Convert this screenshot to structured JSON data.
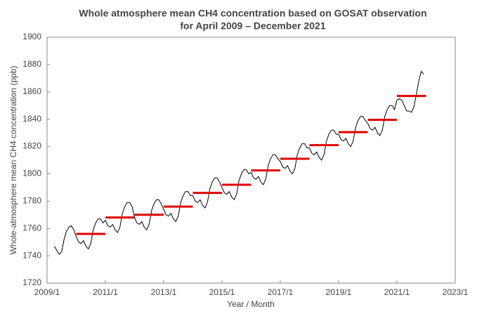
{
  "chart_data": {
    "type": "line",
    "title": [
      "Whole atmosphere mean CH4 concentration based on GOSAT observation",
      "for April 2009 – December 2021"
    ],
    "x_label": "Year / Month",
    "y_label": "Whole-atmosphere mean CH4 concentration (ppb)",
    "x": [
      "2009/4",
      "2009/5",
      "2009/6",
      "2009/7",
      "2009/8",
      "2009/9",
      "2009/10",
      "2009/11",
      "2009/12",
      "2010/1",
      "2010/2",
      "2010/3",
      "2010/4",
      "2010/5",
      "2010/6",
      "2010/7",
      "2010/8",
      "2010/9",
      "2010/10",
      "2010/11",
      "2010/12",
      "2011/1",
      "2011/2",
      "2011/3",
      "2011/4",
      "2011/5",
      "2011/6",
      "2011/7",
      "2011/8",
      "2011/9",
      "2011/10",
      "2011/11",
      "2011/12",
      "2012/1",
      "2012/2",
      "2012/3",
      "2012/4",
      "2012/5",
      "2012/6",
      "2012/7",
      "2012/8",
      "2012/9",
      "2012/10",
      "2012/11",
      "2012/12",
      "2013/1",
      "2013/2",
      "2013/3",
      "2013/4",
      "2013/5",
      "2013/6",
      "2013/7",
      "2013/8",
      "2013/9",
      "2013/10",
      "2013/11",
      "2013/12",
      "2014/1",
      "2014/2",
      "2014/3",
      "2014/4",
      "2014/5",
      "2014/6",
      "2014/7",
      "2014/8",
      "2014/9",
      "2014/10",
      "2014/11",
      "2014/12",
      "2015/1",
      "2015/2",
      "2015/3",
      "2015/4",
      "2015/5",
      "2015/6",
      "2015/7",
      "2015/8",
      "2015/9",
      "2015/10",
      "2015/11",
      "2015/12",
      "2016/1",
      "2016/2",
      "2016/3",
      "2016/4",
      "2016/5",
      "2016/6",
      "2016/7",
      "2016/8",
      "2016/9",
      "2016/10",
      "2016/11",
      "2016/12",
      "2017/1",
      "2017/2",
      "2017/3",
      "2017/4",
      "2017/5",
      "2017/6",
      "2017/7",
      "2017/8",
      "2017/9",
      "2017/10",
      "2017/11",
      "2017/12",
      "2018/1",
      "2018/2",
      "2018/3",
      "2018/4",
      "2018/5",
      "2018/6",
      "2018/7",
      "2018/8",
      "2018/9",
      "2018/10",
      "2018/11",
      "2018/12",
      "2019/1",
      "2019/2",
      "2019/3",
      "2019/4",
      "2019/5",
      "2019/6",
      "2019/7",
      "2019/8",
      "2019/9",
      "2019/10",
      "2019/11",
      "2019/12",
      "2020/1",
      "2020/2",
      "2020/3",
      "2020/4",
      "2020/5",
      "2020/6",
      "2020/7",
      "2020/8",
      "2020/9",
      "2020/10",
      "2020/11",
      "2020/12",
      "2021/1",
      "2021/2",
      "2021/3",
      "2021/4",
      "2021/5",
      "2021/6",
      "2021/7",
      "2021/8",
      "2021/9",
      "2021/10",
      "2021/11",
      "2021/12"
    ],
    "series": [
      {
        "color": "#000000",
        "values": [
          1747,
          1744,
          1741,
          1743,
          1752,
          1758,
          1761,
          1762,
          1759,
          1754,
          1750,
          1749,
          1751,
          1747,
          1745,
          1749,
          1759,
          1764,
          1767,
          1767,
          1764,
          1766,
          1762,
          1761,
          1763,
          1759,
          1757,
          1761,
          1771,
          1776,
          1779,
          1779,
          1776,
          1768,
          1764,
          1763,
          1765,
          1761,
          1759,
          1763,
          1773,
          1778,
          1781,
          1781,
          1778,
          1774,
          1770,
          1769,
          1771,
          1767,
          1765,
          1769,
          1779,
          1784,
          1787,
          1787,
          1784,
          1784,
          1780,
          1779,
          1781,
          1777,
          1775,
          1779,
          1789,
          1794,
          1797,
          1797,
          1794,
          1790,
          1786,
          1785,
          1787,
          1783,
          1781,
          1785,
          1795,
          1800,
          1803,
          1803,
          1800,
          1801,
          1797,
          1796,
          1798,
          1794,
          1792,
          1796,
          1806,
          1811,
          1814,
          1814,
          1811,
          1809,
          1805,
          1804,
          1806,
          1802,
          1800,
          1804,
          1814,
          1819,
          1822,
          1822,
          1819,
          1819,
          1815,
          1814,
          1816,
          1812,
          1810,
          1814,
          1824,
          1829,
          1832,
          1832,
          1829,
          1829,
          1825,
          1824,
          1826,
          1822,
          1820,
          1824,
          1834,
          1839,
          1842,
          1842,
          1839,
          1837,
          1833,
          1832,
          1834,
          1830,
          1828,
          1832,
          1842,
          1847,
          1850,
          1850,
          1847,
          1854,
          1855,
          1854,
          1850,
          1846,
          1846,
          1845,
          1849,
          1858,
          1868,
          1875,
          1873
        ]
      }
    ],
    "annual_means": {
      "color": "#e00000",
      "years": [
        2010,
        2011,
        2012,
        2013,
        2014,
        2015,
        2016,
        2017,
        2018,
        2019,
        2020,
        2021
      ],
      "values": [
        1756,
        1768,
        1770,
        1776,
        1786,
        1792,
        1802.5,
        1811,
        1821,
        1830.5,
        1839.5,
        1857
      ]
    },
    "xlim": [
      "2009/1",
      "2023/1"
    ],
    "xticks": [
      "2009/1",
      "2011/1",
      "2013/1",
      "2015/1",
      "2017/1",
      "2019/1",
      "2021/1",
      "2023/1"
    ],
    "ylim": [
      1720,
      1900
    ],
    "yticks": [
      1720,
      1740,
      1760,
      1780,
      1800,
      1820,
      1840,
      1860,
      1880,
      1900
    ]
  }
}
